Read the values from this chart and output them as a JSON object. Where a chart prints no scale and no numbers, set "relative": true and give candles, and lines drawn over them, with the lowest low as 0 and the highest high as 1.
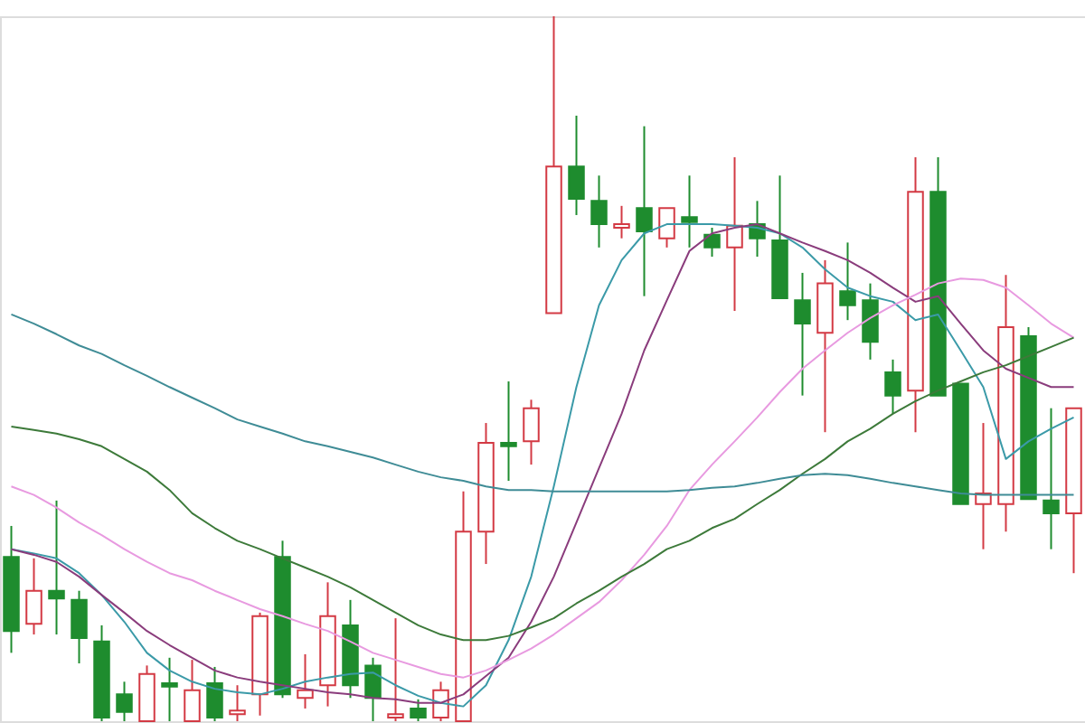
{
  "chart_data": {
    "type": "candlestick",
    "relative": true,
    "categories": [
      null,
      null,
      null,
      null,
      null,
      null,
      null,
      null,
      null,
      null,
      null,
      null,
      null,
      null,
      null,
      null,
      null,
      null,
      null,
      null,
      null,
      null,
      null,
      null,
      null,
      null,
      null,
      null,
      null,
      null,
      null,
      null,
      null,
      null,
      null,
      null,
      null,
      null,
      null,
      null,
      null,
      null,
      null,
      null,
      null,
      null,
      null,
      null
    ],
    "ohlc": [
      [
        0.233,
        0.277,
        0.097,
        0.128
      ],
      [
        0.138,
        0.231,
        0.123,
        0.185
      ],
      [
        0.185,
        0.313,
        0.123,
        0.174
      ],
      [
        0.172,
        0.185,
        0.082,
        0.118
      ],
      [
        0.113,
        0.136,
        0,
        0.005
      ],
      [
        0.038,
        0.056,
        0,
        0.013
      ],
      [
        0,
        0.079,
        0,
        0.067
      ],
      [
        0.054,
        0.09,
        0,
        0.049
      ],
      [
        0,
        0.087,
        0,
        0.044
      ],
      [
        0.054,
        0.077,
        0,
        0.005
      ],
      [
        0.01,
        0.051,
        0,
        0.015
      ],
      [
        0.038,
        0.154,
        0.008,
        0.149
      ],
      [
        0.233,
        0.256,
        0.033,
        0.038
      ],
      [
        0.033,
        0.095,
        0.018,
        0.044
      ],
      [
        0.051,
        0.197,
        0.021,
        0.149
      ],
      [
        0.136,
        0.172,
        0.033,
        0.051
      ],
      [
        0.079,
        0.09,
        0,
        0.033
      ],
      [
        0.005,
        0.146,
        0,
        0.01
      ],
      [
        0.018,
        0.031,
        0,
        0.005
      ],
      [
        0.005,
        0.056,
        0,
        0.044
      ],
      [
        0,
        0.326,
        0,
        0.269
      ],
      [
        0.269,
        0.423,
        0.223,
        0.395
      ],
      [
        0.395,
        0.482,
        0.341,
        0.39
      ],
      [
        0.397,
        0.456,
        0.364,
        0.444
      ],
      [
        0.579,
        1,
        0.579,
        0.787
      ],
      [
        0.787,
        0.859,
        0.718,
        0.741
      ],
      [
        0.738,
        0.774,
        0.672,
        0.705
      ],
      [
        0.7,
        0.731,
        0.685,
        0.705
      ],
      [
        0.728,
        0.844,
        0.603,
        0.695
      ],
      [
        0.685,
        0.728,
        0.672,
        0.728
      ],
      [
        0.715,
        0.774,
        0.672,
        0.708
      ],
      [
        0.69,
        0.7,
        0.659,
        0.672
      ],
      [
        0.672,
        0.8,
        0.582,
        0.703
      ],
      [
        0.705,
        0.738,
        0.659,
        0.685
      ],
      [
        0.682,
        0.774,
        0.6,
        0.6
      ],
      [
        0.597,
        0.636,
        0.462,
        0.564
      ],
      [
        0.551,
        0.654,
        0.41,
        0.621
      ],
      [
        0.61,
        0.679,
        0.569,
        0.59
      ],
      [
        0.597,
        0.621,
        0.513,
        0.538
      ],
      [
        0.495,
        0.513,
        0.436,
        0.462
      ],
      [
        0.469,
        0.8,
        0.41,
        0.751
      ],
      [
        0.751,
        0.8,
        0.462,
        0.462
      ],
      [
        0.479,
        0.479,
        0.308,
        0.308
      ],
      [
        0.308,
        0.423,
        0.244,
        0.323
      ],
      [
        0.308,
        0.633,
        0.269,
        0.559
      ],
      [
        0.546,
        0.559,
        0.315,
        0.315
      ],
      [
        0.313,
        0.444,
        0.244,
        0.295
      ],
      [
        0.295,
        0.444,
        0.21,
        0.444
      ]
    ],
    "colors": [
      "#1e8c2e",
      "#d33a44",
      "#1e8c2e",
      "#1e8c2e",
      "#1e8c2e",
      "#1e8c2e",
      "#d33a44",
      "#1e8c2e",
      "#d33a44",
      "#1e8c2e",
      "#d33a44",
      "#d33a44",
      "#1e8c2e",
      "#d33a44",
      "#d33a44",
      "#1e8c2e",
      "#1e8c2e",
      "#d33a44",
      "#1e8c2e",
      "#d33a44",
      "#d33a44",
      "#d33a44",
      "#1e8c2e",
      "#d33a44",
      "#d33a44",
      "#1e8c2e",
      "#1e8c2e",
      "#d33a44",
      "#1e8c2e",
      "#d33a44",
      "#1e8c2e",
      "#1e8c2e",
      "#d33a44",
      "#1e8c2e",
      "#1e8c2e",
      "#1e8c2e",
      "#d33a44",
      "#1e8c2e",
      "#1e8c2e",
      "#1e8c2e",
      "#d33a44",
      "#1e8c2e",
      "#1e8c2e",
      "#d33a44",
      "#d33a44",
      "#1e8c2e",
      "#1e8c2e",
      "#d33a44"
    ],
    "series": [
      {
        "type": "line",
        "color": "#3b9aa8",
        "values": [
          0.244,
          0.238,
          0.231,
          0.21,
          0.179,
          0.141,
          0.097,
          0.072,
          0.056,
          0.046,
          0.041,
          0.038,
          0.046,
          0.056,
          0.062,
          0.067,
          0.069,
          0.051,
          0.036,
          0.026,
          0.021,
          0.051,
          0.115,
          0.205,
          0.333,
          0.474,
          0.59,
          0.654,
          0.692,
          0.705,
          0.705,
          0.705,
          0.703,
          0.7,
          0.692,
          0.672,
          0.641,
          0.615,
          0.603,
          0.595,
          0.569,
          0.577,
          0.526,
          0.474,
          0.372,
          0.397,
          0.415,
          0.431
        ]
      },
      {
        "type": "line",
        "color": "#8a3c7c",
        "values": [
          0.244,
          0.236,
          0.226,
          0.205,
          0.179,
          0.154,
          0.128,
          0.108,
          0.09,
          0.072,
          0.062,
          0.056,
          0.051,
          0.046,
          0.041,
          0.038,
          0.033,
          0.031,
          0.026,
          0.026,
          0.038,
          0.064,
          0.09,
          0.141,
          0.205,
          0.282,
          0.359,
          0.436,
          0.526,
          0.597,
          0.667,
          0.692,
          0.7,
          0.705,
          0.692,
          0.679,
          0.667,
          0.654,
          0.636,
          0.615,
          0.595,
          0.603,
          0.564,
          0.526,
          0.5,
          0.487,
          0.474,
          0.474
        ]
      },
      {
        "type": "line",
        "color": "#e89ae0",
        "values": [
          0.333,
          0.321,
          0.303,
          0.282,
          0.264,
          0.244,
          0.226,
          0.21,
          0.2,
          0.185,
          0.172,
          0.159,
          0.149,
          0.138,
          0.128,
          0.113,
          0.097,
          0.087,
          0.077,
          0.067,
          0.062,
          0.072,
          0.087,
          0.103,
          0.123,
          0.146,
          0.169,
          0.2,
          0.236,
          0.277,
          0.328,
          0.364,
          0.397,
          0.431,
          0.467,
          0.5,
          0.526,
          0.551,
          0.572,
          0.59,
          0.605,
          0.621,
          0.628,
          0.626,
          0.615,
          0.59,
          0.564,
          0.544
        ]
      },
      {
        "type": "line",
        "color": "#3d7a3a",
        "values": [
          0.418,
          0.413,
          0.408,
          0.4,
          0.39,
          0.372,
          0.354,
          0.328,
          0.295,
          0.274,
          0.256,
          0.244,
          0.231,
          0.218,
          0.205,
          0.19,
          0.172,
          0.154,
          0.136,
          0.123,
          0.115,
          0.115,
          0.121,
          0.133,
          0.146,
          0.167,
          0.185,
          0.205,
          0.223,
          0.244,
          0.256,
          0.274,
          0.287,
          0.308,
          0.328,
          0.351,
          0.372,
          0.397,
          0.415,
          0.436,
          0.454,
          0.469,
          0.482,
          0.495,
          0.505,
          0.518,
          0.531,
          0.544
        ]
      },
      {
        "type": "line",
        "color": "#3f8c96",
        "values": [
          0.577,
          0.564,
          0.549,
          0.533,
          0.521,
          0.505,
          0.49,
          0.474,
          0.459,
          0.444,
          0.428,
          0.418,
          0.408,
          0.397,
          0.39,
          0.382,
          0.374,
          0.364,
          0.354,
          0.346,
          0.341,
          0.333,
          0.328,
          0.328,
          0.326,
          0.326,
          0.326,
          0.326,
          0.326,
          0.326,
          0.328,
          0.331,
          0.333,
          0.338,
          0.344,
          0.349,
          0.351,
          0.349,
          0.344,
          0.338,
          0.333,
          0.328,
          0.323,
          0.321,
          0.321,
          0.321,
          0.321,
          0.321
        ]
      }
    ]
  }
}
